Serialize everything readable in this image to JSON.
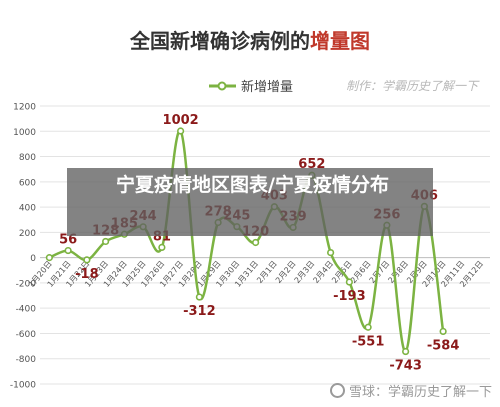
{
  "chart_data": {
    "type": "line",
    "title_parts": [
      "全国新增确诊病例的",
      "增量图"
    ],
    "legend": "新增增量",
    "watermark_top": "制作：学霸历史了解一下",
    "ylim": [
      -1000,
      1200
    ],
    "yticks": [
      -1000,
      -800,
      -600,
      -400,
      -200,
      0,
      200,
      400,
      600,
      800,
      1000,
      1200
    ],
    "categories": [
      "1月20日",
      "1月21日",
      "1月22日",
      "1月23日",
      "1月24日",
      "1月25日",
      "1月26日",
      "1月27日",
      "1月28日",
      "1月29日",
      "1月30日",
      "1月31日",
      "2月1日",
      "2月2日",
      "2月3日",
      "2月4日",
      "2月5日",
      "2月6日",
      "2月7日",
      "2月8日",
      "2月9日",
      "2月10日",
      "2月11日",
      "2月12日"
    ],
    "values": [
      0,
      56,
      -18,
      128,
      185,
      244,
      81,
      1002,
      -312,
      278,
      245,
      120,
      403,
      239,
      652,
      40,
      -193,
      -551,
      256,
      -743,
      406,
      -584
    ],
    "labels": [
      "",
      "56",
      "-18",
      "128",
      "185",
      "244",
      "81",
      "1002",
      "-312",
      "278",
      "245",
      "120",
      "403",
      "239",
      "652",
      "",
      "-193",
      "-551",
      "256",
      "-743",
      "406",
      "-584"
    ],
    "line_color": "#7cb342",
    "label_color": "#8b1a1a",
    "title_color": "#333333",
    "title_accent_color": "#c0392b"
  },
  "overlay": {
    "text": "宁夏疫情地区图表/宁夏疫情分布"
  },
  "watermark_bottom": {
    "text": "雪球：学霸历史了解一下"
  }
}
